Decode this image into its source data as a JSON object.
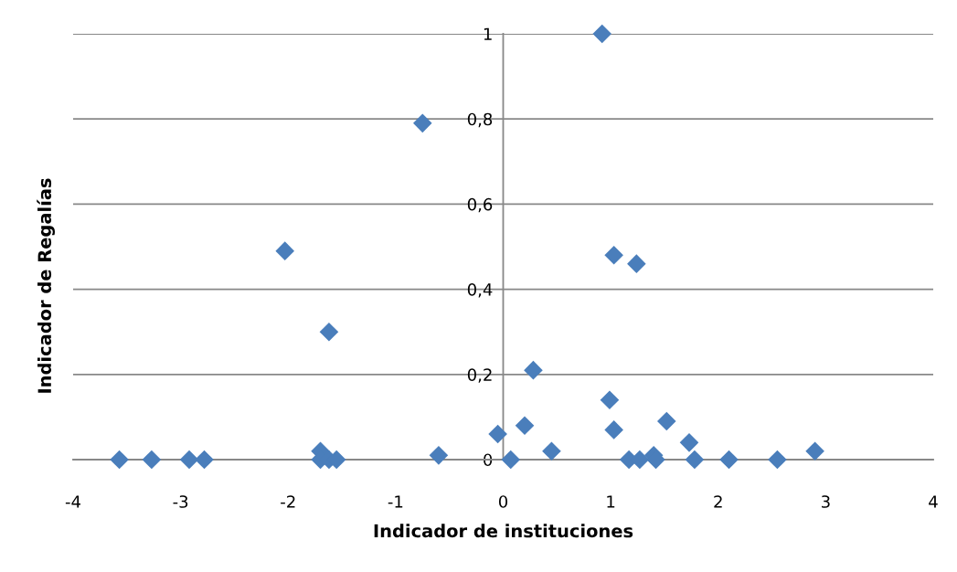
{
  "chart_data": {
    "type": "scatter",
    "xlabel": "Indicador de instituciones",
    "ylabel": "Indicador de Regalías",
    "x": [
      -3.57,
      -3.27,
      -2.92,
      -2.78,
      -1.7,
      -1.7,
      -1.62,
      -1.55,
      -0.6,
      -0.05,
      0.07,
      0.2,
      0.45,
      0.28,
      0.92,
      -0.75,
      -2.03,
      -1.62,
      1.03,
      1.24,
      0.99,
      1.03,
      1.17,
      1.27,
      1.4,
      1.42,
      1.52,
      1.73,
      1.78,
      2.1,
      2.55,
      2.9
    ],
    "values": [
      0,
      0,
      0,
      0,
      0.02,
      0,
      0,
      0,
      0.01,
      0.06,
      0,
      0.08,
      0.02,
      0.21,
      1.0,
      0.79,
      0.49,
      0.3,
      0.48,
      0.46,
      0.14,
      0.07,
      0,
      0,
      0.01,
      0,
      0.09,
      0.04,
      0,
      0,
      0,
      0.02
    ],
    "color": "#4a7ebb",
    "marker": "diamond",
    "grid": "y",
    "xlim": [
      -4,
      4
    ],
    "xticks": [
      -4,
      -3,
      -2,
      -1,
      0,
      1,
      2,
      3,
      4
    ],
    "ylim": [
      0,
      1
    ],
    "yticks": [
      {
        "value": 0,
        "label": "0"
      },
      {
        "value": 0.2,
        "label": "0,2"
      },
      {
        "value": 0.4,
        "label": "0,4"
      },
      {
        "value": 0.6,
        "label": "0,6"
      },
      {
        "value": 0.8,
        "label": "0,8"
      },
      {
        "value": 1,
        "label": "1"
      }
    ]
  }
}
